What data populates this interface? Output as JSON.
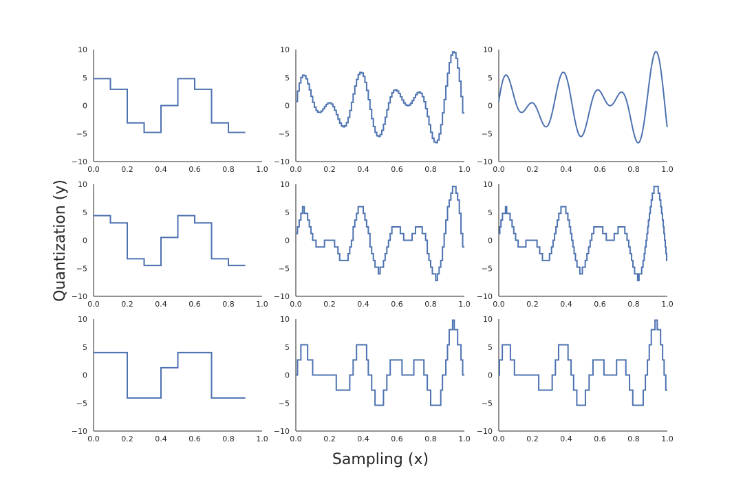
{
  "figure": {
    "xlabel": "Sampling (x)",
    "ylabel": "Quantization (y)",
    "line_color": "#4c72b0",
    "axis_color": "#262626"
  },
  "chart_data": [
    {
      "type": "line",
      "subtype": "step",
      "row": 0,
      "col": 0,
      "xlim": [
        0,
        1
      ],
      "ylim": [
        -10,
        10
      ],
      "x_ticks": [
        "0.0",
        "0.2",
        "0.4",
        "0.6",
        "0.8",
        "1.0"
      ],
      "y_ticks": [
        "10",
        "5",
        "0",
        "−5",
        "−10"
      ],
      "x": [
        0.0,
        0.1,
        0.2,
        0.3,
        0.4,
        0.5,
        0.6,
        0.7,
        0.8,
        0.9
      ],
      "y": [
        4.8,
        2.9,
        -3.1,
        -4.8,
        0.0,
        4.8,
        2.9,
        -3.1,
        -4.8,
        -4.8
      ]
    },
    {
      "type": "line",
      "subtype": "step",
      "row": 0,
      "col": 1,
      "xlim": [
        0,
        1
      ],
      "ylim": [
        -10,
        10
      ],
      "x_ticks": [
        "0.0",
        "0.2",
        "0.4",
        "0.6",
        "0.8",
        "1.0"
      ],
      "y_ticks": [
        "10",
        "5",
        "0",
        "−5",
        "−10"
      ],
      "samples": 100,
      "quant_step": 0
    },
    {
      "type": "line",
      "subtype": "smooth",
      "row": 0,
      "col": 2,
      "xlim": [
        0,
        1
      ],
      "ylim": [
        -10,
        10
      ],
      "x_ticks": [
        "0.0",
        "0.2",
        "0.4",
        "0.6",
        "0.8",
        "1.0"
      ],
      "y_ticks": [
        "10",
        "5",
        "0",
        "−5",
        "−10"
      ],
      "samples": 1000,
      "quant_step": 0
    },
    {
      "type": "line",
      "subtype": "step",
      "row": 1,
      "col": 0,
      "xlim": [
        0,
        1
      ],
      "ylim": [
        -10,
        10
      ],
      "x_ticks": [
        "0.0",
        "0.2",
        "0.4",
        "0.6",
        "0.8",
        "1.0"
      ],
      "y_ticks": [
        "10",
        "5",
        "0",
        "−5",
        "−10"
      ],
      "x": [
        0.0,
        0.1,
        0.2,
        0.3,
        0.4,
        0.5,
        0.6,
        0.7,
        0.8,
        0.9
      ],
      "y": [
        4.4,
        3.1,
        -3.3,
        -4.5,
        0.5,
        4.4,
        3.1,
        -3.3,
        -4.5,
        -4.5
      ]
    },
    {
      "type": "line",
      "subtype": "step",
      "row": 1,
      "col": 1,
      "xlim": [
        0,
        1
      ],
      "ylim": [
        -10,
        10
      ],
      "x_ticks": [
        "0.0",
        "0.2",
        "0.4",
        "0.6",
        "0.8",
        "1.0"
      ],
      "y_ticks": [
        "10",
        "5",
        "0",
        "−5",
        "−10"
      ],
      "samples": 100,
      "quant_step": 1.2
    },
    {
      "type": "line",
      "subtype": "step",
      "row": 1,
      "col": 2,
      "xlim": [
        0,
        1
      ],
      "ylim": [
        -10,
        10
      ],
      "x_ticks": [
        "0.0",
        "0.2",
        "0.4",
        "0.6",
        "0.8",
        "1.0"
      ],
      "y_ticks": [
        "10",
        "5",
        "0",
        "−5",
        "−10"
      ],
      "samples": 1000,
      "quant_step": 1.2
    },
    {
      "type": "line",
      "subtype": "step",
      "row": 2,
      "col": 0,
      "xlim": [
        0,
        1
      ],
      "ylim": [
        -10,
        10
      ],
      "x_ticks": [
        "0.0",
        "0.2",
        "0.4",
        "0.6",
        "0.8",
        "1.0"
      ],
      "y_ticks": [
        "10",
        "5",
        "0",
        "−5",
        "−10"
      ],
      "x": [
        0.0,
        0.2,
        0.4,
        0.5,
        0.7,
        0.9
      ],
      "y": [
        4.0,
        -4.1,
        1.3,
        4.0,
        -4.1,
        -4.1
      ]
    },
    {
      "type": "line",
      "subtype": "step",
      "row": 2,
      "col": 1,
      "xlim": [
        0,
        1
      ],
      "ylim": [
        -10,
        10
      ],
      "x_ticks": [
        "0.0",
        "0.2",
        "0.4",
        "0.6",
        "0.8",
        "1.0"
      ],
      "y_ticks": [
        "10",
        "5",
        "0",
        "−5",
        "−10"
      ],
      "samples": 100,
      "quant_step": 2.7
    },
    {
      "type": "line",
      "subtype": "step",
      "row": 2,
      "col": 2,
      "xlim": [
        0,
        1
      ],
      "ylim": [
        -10,
        10
      ],
      "x_ticks": [
        "0.0",
        "0.2",
        "0.4",
        "0.6",
        "0.8",
        "1.0"
      ],
      "y_ticks": [
        "10",
        "5",
        "0",
        "−5",
        "−10"
      ],
      "samples": 1000,
      "quant_step": 2.7
    }
  ]
}
